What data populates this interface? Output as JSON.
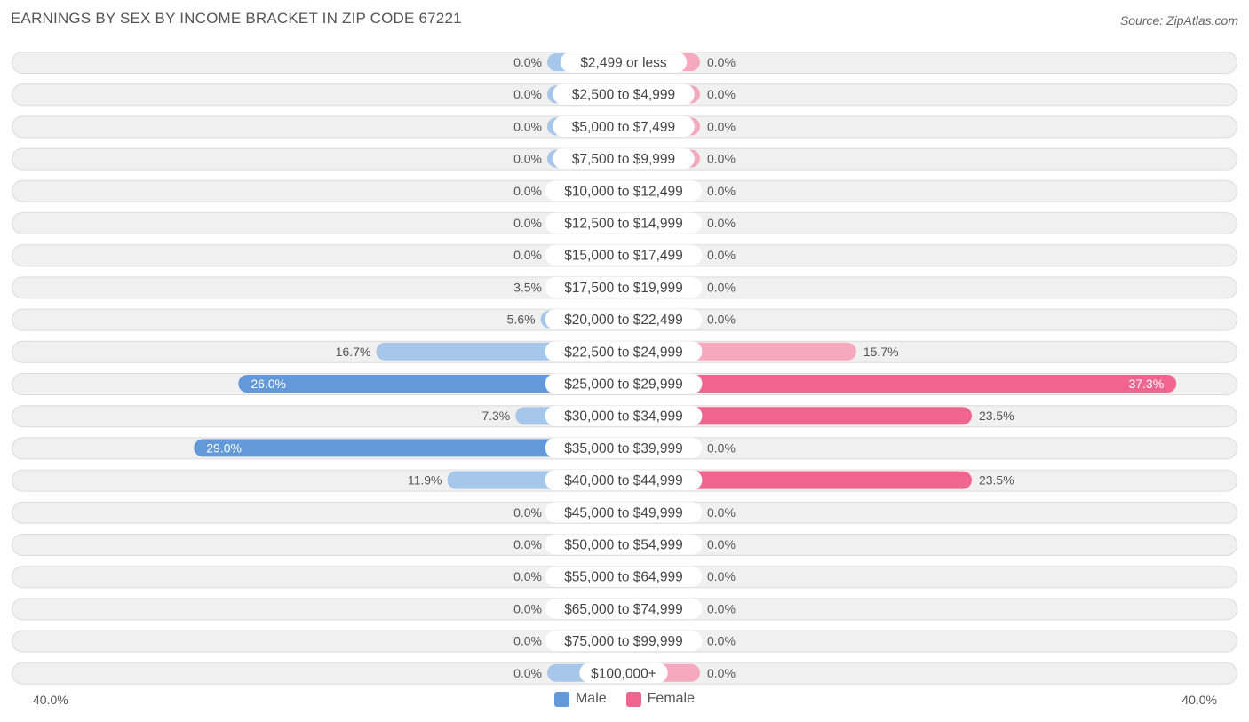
{
  "title": "EARNINGS BY SEX BY INCOME BRACKET IN ZIP CODE 67221",
  "source": "Source: ZipAtlas.com",
  "colors": {
    "male_light": "#a7c7ea",
    "male_dark": "#6399d8",
    "female_light": "#f5a8c0",
    "female_dark": "#ef6590",
    "row_bg": "#f0f0f0",
    "row_border": "#dcdcdc"
  },
  "chart_data": {
    "type": "bar",
    "orientation": "horizontal-diverging",
    "title": "EARNINGS BY SEX BY INCOME BRACKET IN ZIP CODE 67221",
    "categories": [
      "$2,499 or less",
      "$2,500 to $4,999",
      "$5,000 to $7,499",
      "$7,500 to $9,999",
      "$10,000 to $12,499",
      "$12,500 to $14,999",
      "$15,000 to $17,499",
      "$17,500 to $19,999",
      "$20,000 to $22,499",
      "$22,500 to $24,999",
      "$25,000 to $29,999",
      "$30,000 to $34,999",
      "$35,000 to $39,999",
      "$40,000 to $44,999",
      "$45,000 to $49,999",
      "$50,000 to $54,999",
      "$55,000 to $64,999",
      "$65,000 to $74,999",
      "$75,000 to $99,999",
      "$100,000+"
    ],
    "series": [
      {
        "name": "Male",
        "values": [
          0.0,
          0.0,
          0.0,
          0.0,
          0.0,
          0.0,
          0.0,
          3.5,
          5.6,
          16.7,
          26.0,
          7.3,
          29.0,
          11.9,
          0.0,
          0.0,
          0.0,
          0.0,
          0.0,
          0.0
        ],
        "labels": [
          "0.0%",
          "0.0%",
          "0.0%",
          "0.0%",
          "0.0%",
          "0.0%",
          "0.0%",
          "3.5%",
          "5.6%",
          "16.7%",
          "26.0%",
          "7.3%",
          "29.0%",
          "11.9%",
          "0.0%",
          "0.0%",
          "0.0%",
          "0.0%",
          "0.0%",
          "0.0%"
        ]
      },
      {
        "name": "Female",
        "values": [
          0.0,
          0.0,
          0.0,
          0.0,
          0.0,
          0.0,
          0.0,
          0.0,
          0.0,
          15.7,
          37.3,
          23.5,
          0.0,
          23.5,
          0.0,
          0.0,
          0.0,
          0.0,
          0.0,
          0.0
        ],
        "labels": [
          "0.0%",
          "0.0%",
          "0.0%",
          "0.0%",
          "0.0%",
          "0.0%",
          "0.0%",
          "0.0%",
          "0.0%",
          "15.7%",
          "37.3%",
          "23.5%",
          "0.0%",
          "23.5%",
          "0.0%",
          "0.0%",
          "0.0%",
          "0.0%",
          "0.0%",
          "0.0%"
        ]
      }
    ],
    "xlim": [
      -40,
      40
    ],
    "axis_left_label": "40.0%",
    "axis_right_label": "40.0%",
    "legend": [
      "Male",
      "Female"
    ],
    "legend_position": "bottom-center"
  }
}
